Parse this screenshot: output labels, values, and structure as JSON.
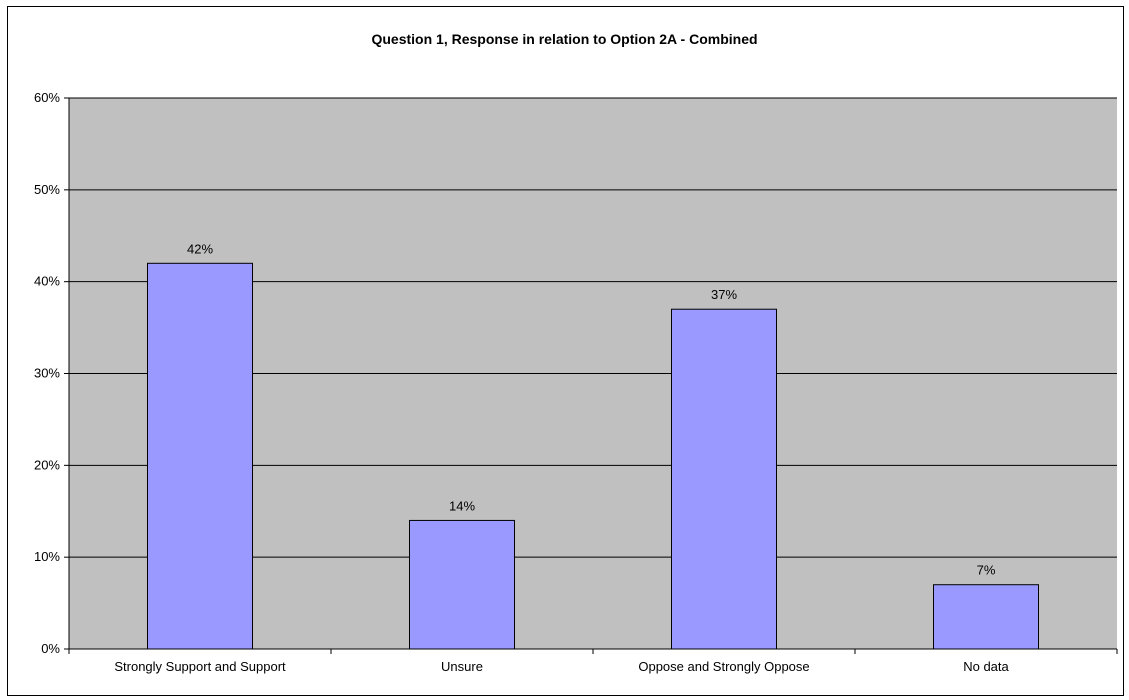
{
  "chart_data": {
    "type": "bar",
    "title": "Question 1, Response in relation to Option 2A - Combined",
    "xlabel": "",
    "ylabel": "",
    "categories": [
      "Strongly Support and Support",
      "Unsure",
      "Oppose and Strongly Oppose",
      "No data"
    ],
    "values": [
      42,
      14,
      37,
      7
    ],
    "data_labels": [
      "42%",
      "14%",
      "37%",
      "7%"
    ],
    "ylim": [
      0,
      60
    ],
    "y_ticks": [
      0,
      10,
      20,
      30,
      40,
      50,
      60
    ],
    "y_tick_labels": [
      "0%",
      "10%",
      "20%",
      "30%",
      "40%",
      "50%",
      "60%"
    ],
    "grid": true,
    "legend": "none",
    "colors": {
      "plot_background": "#C0C0C0",
      "bar_fill": "#9999FF",
      "bar_stroke": "#000000",
      "gridline": "#000000"
    }
  }
}
